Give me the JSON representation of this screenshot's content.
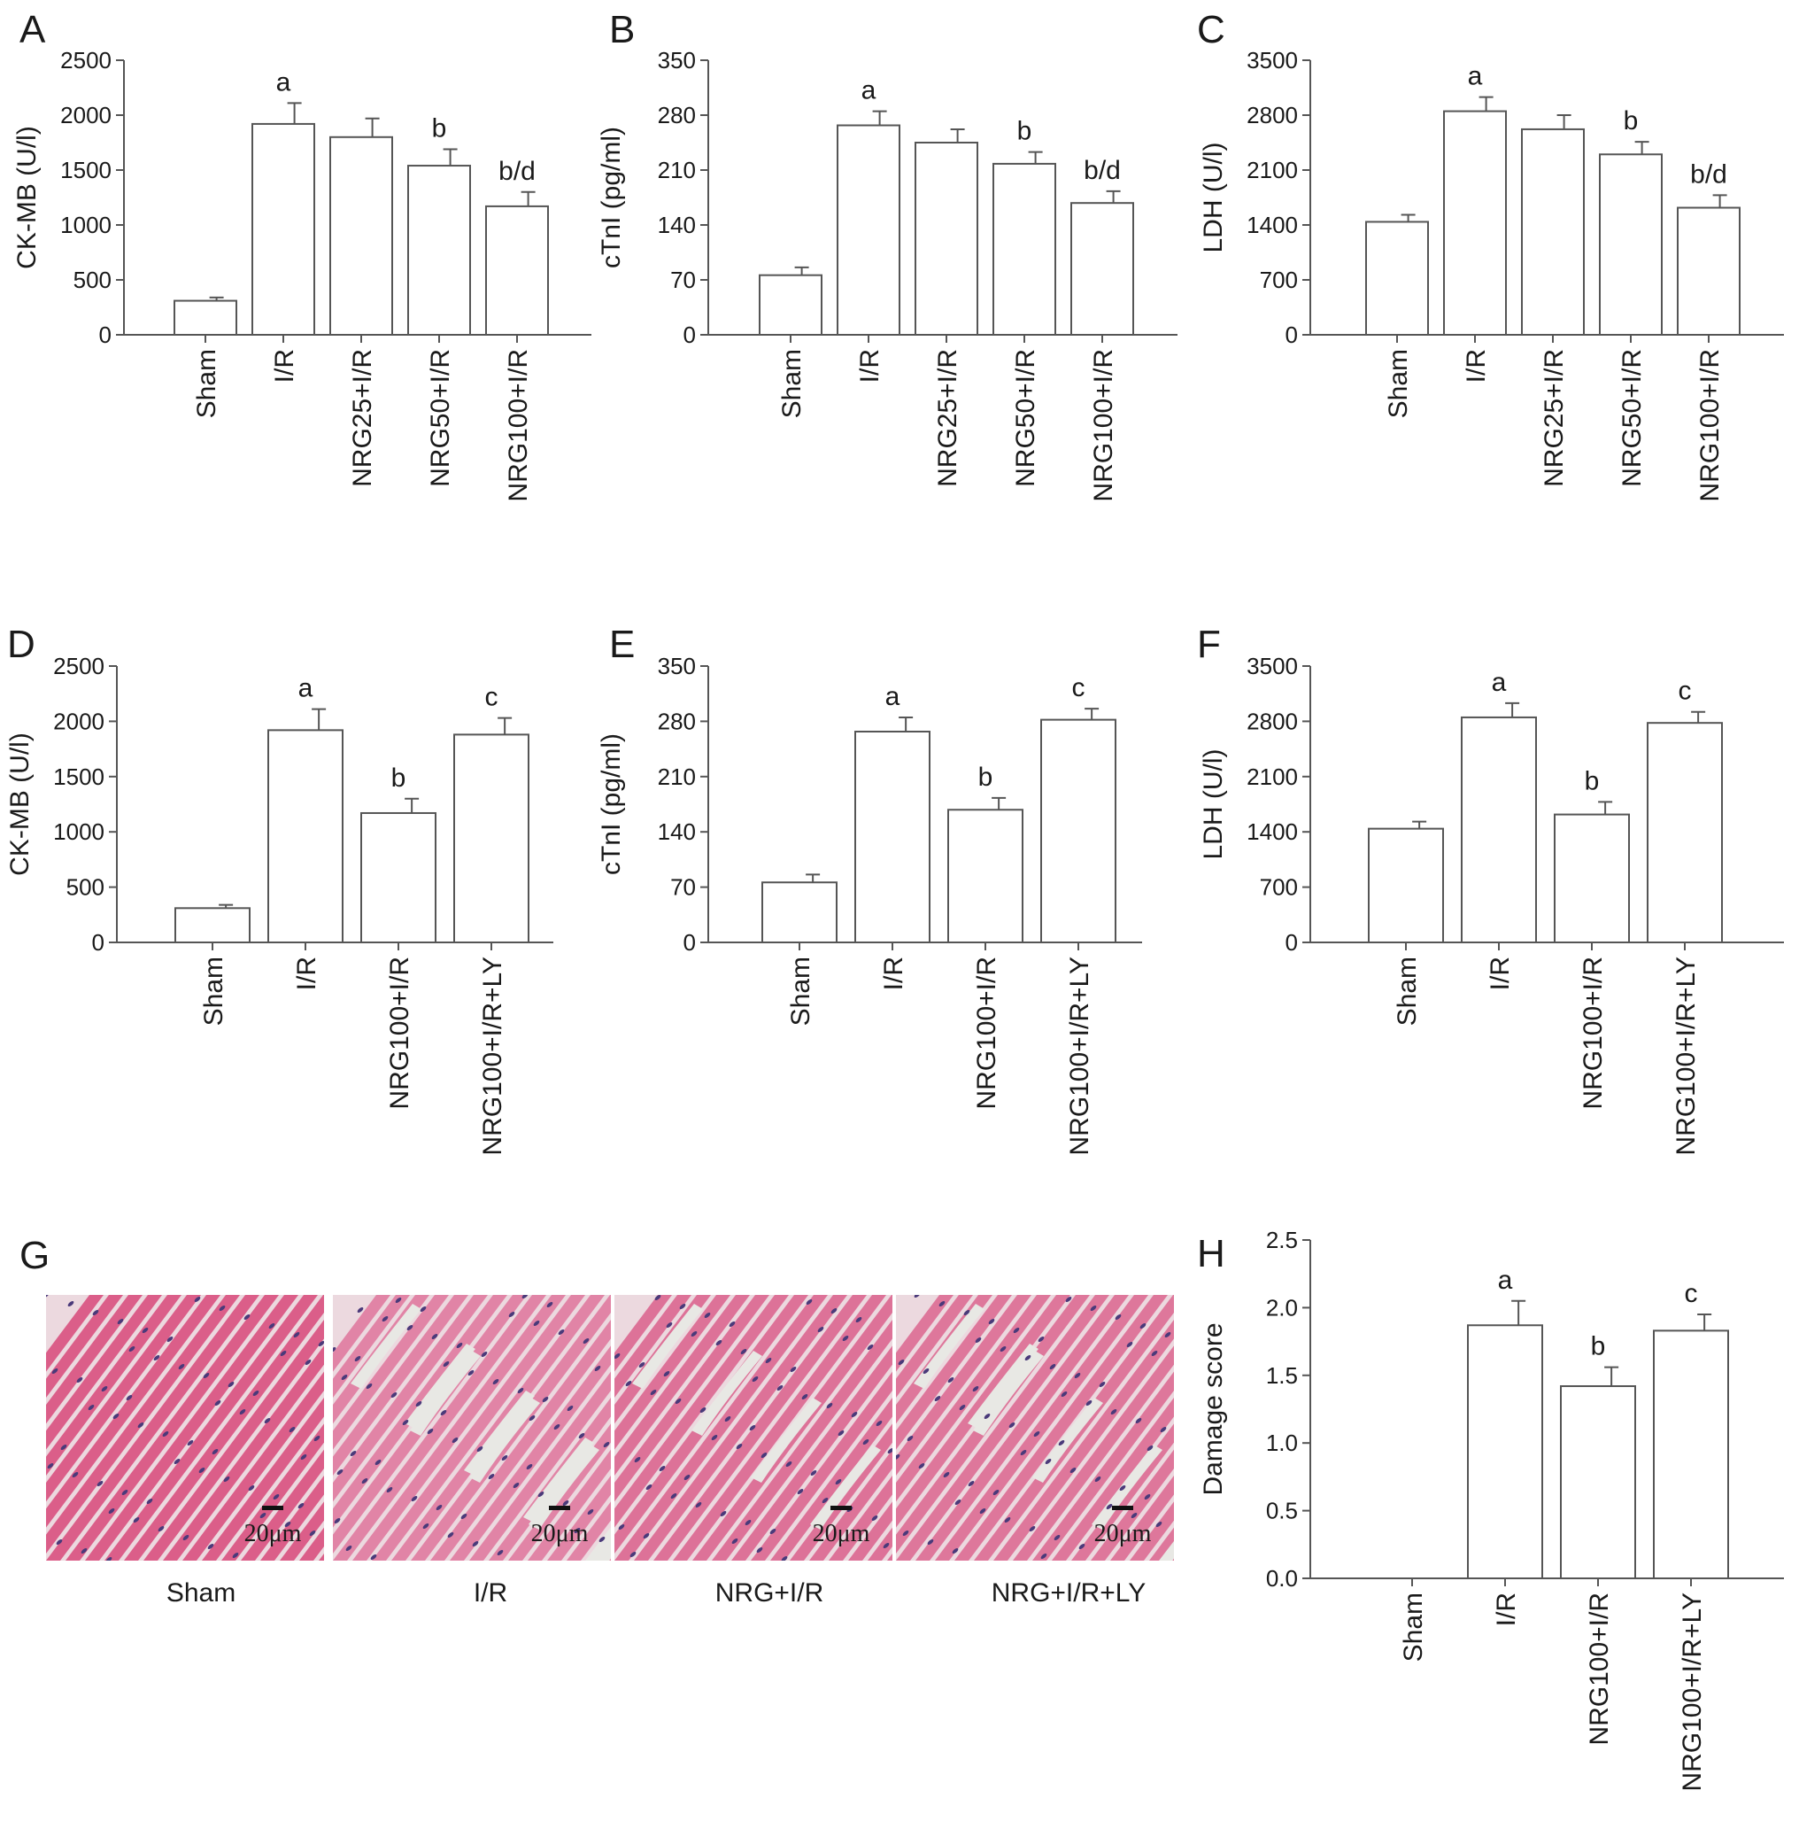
{
  "chart_data": [
    {
      "panel": "A",
      "type": "bar",
      "ylabel": "CK-MB (U/l)",
      "ylim": [
        0,
        2500
      ],
      "yticks": [
        0,
        500,
        1000,
        1500,
        2000,
        2500
      ],
      "categories": [
        "Sham",
        "I/R",
        "NRG25+I/R",
        "NRG50+I/R",
        "NRG100+I/R"
      ],
      "values": [
        310,
        1920,
        1800,
        1540,
        1170
      ],
      "errors": [
        30,
        190,
        170,
        150,
        130
      ],
      "annotations": [
        "",
        "a",
        "",
        "b",
        "b/d"
      ]
    },
    {
      "panel": "B",
      "type": "bar",
      "ylabel": "cTnI (pg/ml)",
      "ylim": [
        0,
        350
      ],
      "yticks": [
        0,
        70,
        140,
        210,
        280,
        350
      ],
      "categories": [
        "Sham",
        "I/R",
        "NRG25+I/R",
        "NRG50+I/R",
        "NRG100+I/R"
      ],
      "values": [
        76,
        267,
        245,
        218,
        168
      ],
      "errors": [
        10,
        18,
        17,
        15,
        15
      ],
      "annotations": [
        "",
        "a",
        "",
        "b",
        "b/d"
      ]
    },
    {
      "panel": "C",
      "type": "bar",
      "ylabel": "LDH (U/l)",
      "ylim": [
        0,
        3500
      ],
      "yticks": [
        0,
        700,
        1400,
        2100,
        2800,
        3500
      ],
      "categories": [
        "Sham",
        "I/R",
        "NRG25+I/R",
        "NRG50+I/R",
        "NRG100+I/R"
      ],
      "values": [
        1440,
        2850,
        2620,
        2300,
        1620
      ],
      "errors": [
        90,
        180,
        180,
        160,
        160
      ],
      "annotations": [
        "",
        "a",
        "",
        "b",
        "b/d"
      ]
    },
    {
      "panel": "D",
      "type": "bar",
      "ylabel": "CK-MB (U/l)",
      "ylim": [
        0,
        2500
      ],
      "yticks": [
        0,
        500,
        1000,
        1500,
        2000,
        2500
      ],
      "categories": [
        "Sham",
        "I/R",
        "NRG100+I/R",
        "NRG100+I/R+LY"
      ],
      "values": [
        310,
        1920,
        1170,
        1880
      ],
      "errors": [
        30,
        190,
        130,
        150
      ],
      "annotations": [
        "",
        "a",
        "b",
        "c"
      ]
    },
    {
      "panel": "E",
      "type": "bar",
      "ylabel": "cTnI (pg/ml)",
      "ylim": [
        0,
        350
      ],
      "yticks": [
        0,
        70,
        140,
        210,
        280,
        350
      ],
      "categories": [
        "Sham",
        "I/R",
        "NRG100+I/R",
        "NRG100+I/R+LY"
      ],
      "values": [
        76,
        267,
        168,
        282
      ],
      "errors": [
        10,
        18,
        15,
        14
      ],
      "annotations": [
        "",
        "a",
        "b",
        "c"
      ]
    },
    {
      "panel": "F",
      "type": "bar",
      "ylabel": "LDH (U/l)",
      "ylim": [
        0,
        3500
      ],
      "yticks": [
        0,
        700,
        1400,
        2100,
        2800,
        3500
      ],
      "categories": [
        "Sham",
        "I/R",
        "NRG100+I/R",
        "NRG100+I/R+LY"
      ],
      "values": [
        1440,
        2850,
        1620,
        2780
      ],
      "errors": [
        90,
        180,
        160,
        140
      ],
      "annotations": [
        "",
        "a",
        "b",
        "c"
      ]
    },
    {
      "panel": "H",
      "type": "bar",
      "ylabel": "Damage score",
      "ylim": [
        0,
        2.5
      ],
      "yticks": [
        "0.0",
        "0.5",
        "1.0",
        "1.5",
        "2.0",
        "2.5"
      ],
      "categories": [
        "Sham",
        "I/R",
        "NRG100+I/R",
        "NRG100+I/R+LY"
      ],
      "values": [
        0,
        1.87,
        1.42,
        1.83
      ],
      "errors": [
        0,
        0.18,
        0.14,
        0.12
      ],
      "annotations": [
        "",
        "a",
        "b",
        "c"
      ]
    }
  ],
  "panel_g": {
    "letter": "G",
    "scale_bar": "20μm",
    "images": [
      {
        "caption": "Sham",
        "fill": "#d9507f",
        "gaps": 0
      },
      {
        "caption": "I/R",
        "fill": "#e07aa0",
        "gaps": 9
      },
      {
        "caption": "NRG+I/R",
        "fill": "#dc6690",
        "gaps": 4
      },
      {
        "caption": "NRG+I/R+LY",
        "fill": "#dd6c94",
        "gaps": 6
      }
    ]
  },
  "colors": {
    "bar_fill": "#ffffff",
    "bar_stroke": "#555555",
    "axis": "#555555",
    "tissue_bg": "#ecd9df",
    "nucleus": "#4a3a7a"
  }
}
